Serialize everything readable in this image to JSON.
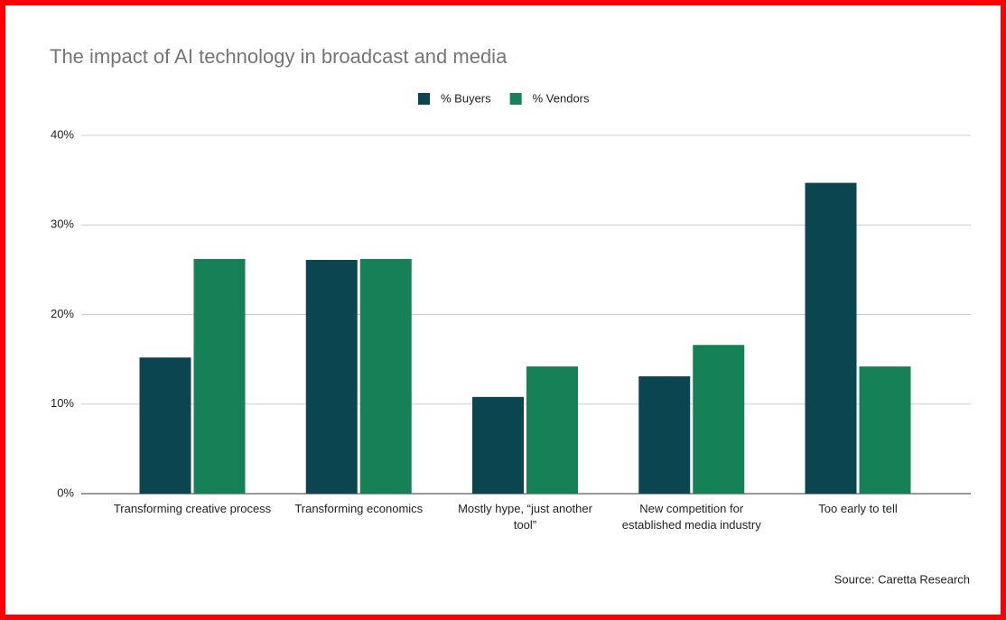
{
  "chart_data": {
    "type": "bar",
    "title": "The impact of AI technology in broadcast and media",
    "source": "Source: Caretta Research",
    "categories": [
      "Transforming creative process",
      "Transforming economics",
      "Mostly hype, “just another tool”",
      "New competition for established media industry",
      "Too early to tell"
    ],
    "series": [
      {
        "name": "% Buyers",
        "color": "#0b4650",
        "values": [
          15.2,
          26.1,
          10.8,
          13.1,
          34.7
        ]
      },
      {
        "name": "% Vendors",
        "color": "#168156",
        "values": [
          26.2,
          26.2,
          14.2,
          16.6,
          14.2
        ]
      }
    ],
    "ylim": [
      0,
      40
    ],
    "yticks": [
      {
        "value": 0,
        "label": "0%"
      },
      {
        "value": 10,
        "label": "10%"
      },
      {
        "value": 20,
        "label": "20%"
      },
      {
        "value": 30,
        "label": "30%"
      },
      {
        "value": 40,
        "label": "40%"
      }
    ],
    "grid": true,
    "legend": "top"
  }
}
